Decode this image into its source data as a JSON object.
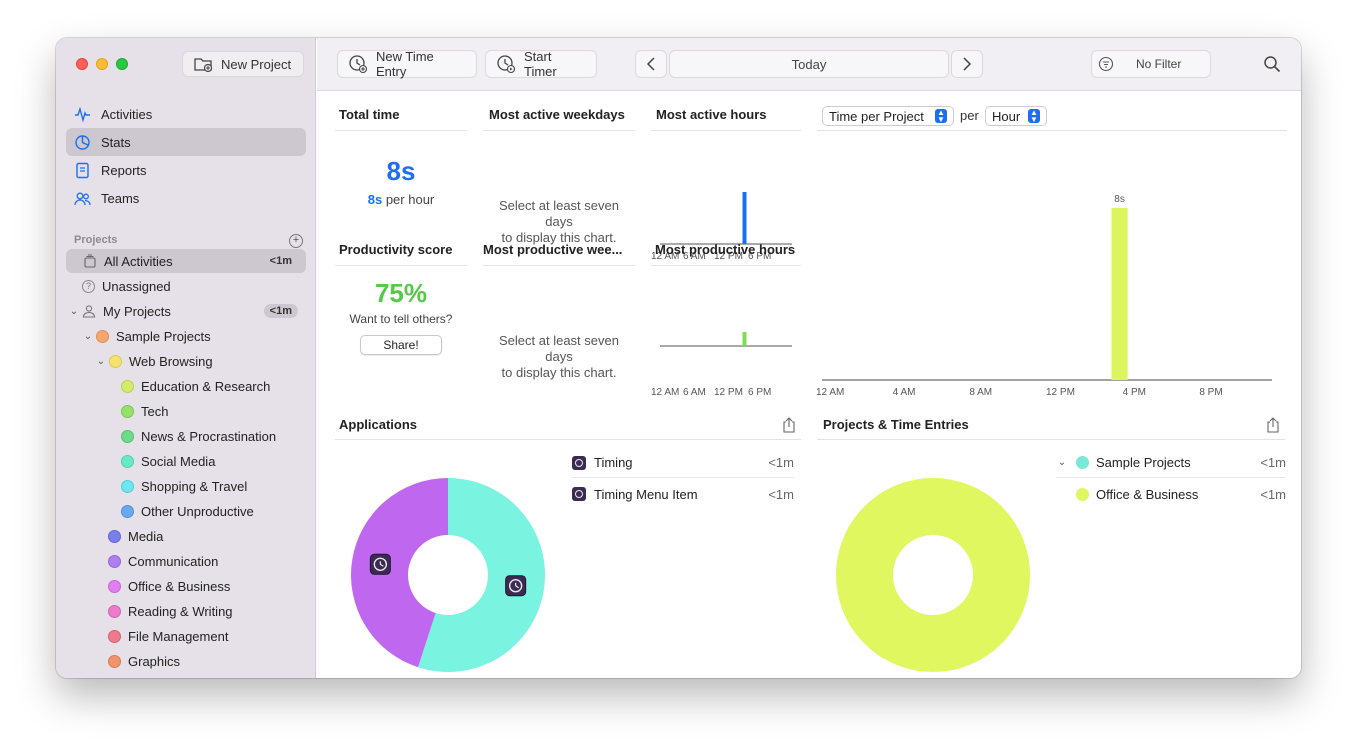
{
  "toolbar": {
    "new_project": "New Project",
    "new_time_entry": "New Time Entry",
    "start_timer": "Start Timer",
    "date_label": "Today",
    "filter_label": "No Filter"
  },
  "sidebar": {
    "nav": [
      {
        "label": "Activities",
        "icon": "activity-icon"
      },
      {
        "label": "Stats",
        "icon": "stats-icon",
        "selected": true
      },
      {
        "label": "Reports",
        "icon": "reports-icon"
      },
      {
        "label": "Teams",
        "icon": "teams-icon"
      }
    ],
    "projects_header": "Projects",
    "all_activities": {
      "label": "All Activities",
      "duration": "<1m"
    },
    "unassigned": {
      "label": "Unassigned"
    },
    "my_projects": {
      "label": "My Projects",
      "duration": "<1m"
    },
    "projects": [
      {
        "label": "Sample Projects",
        "color": "#f5a66e"
      },
      {
        "label": "Web Browsing",
        "color": "#f6e36c"
      },
      {
        "label": "Education & Research",
        "color": "#d4ec6a"
      },
      {
        "label": "Tech",
        "color": "#97e06a"
      },
      {
        "label": "News & Procrastination",
        "color": "#6cdc8a"
      },
      {
        "label": "Social Media",
        "color": "#6be8c8"
      },
      {
        "label": "Shopping & Travel",
        "color": "#6de6ef"
      },
      {
        "label": "Other Unproductive",
        "color": "#6aa9f0"
      },
      {
        "label": "Media",
        "color": "#7b7fee"
      },
      {
        "label": "Communication",
        "color": "#ae7fef"
      },
      {
        "label": "Office & Business",
        "color": "#e27ff0"
      },
      {
        "label": "Reading & Writing",
        "color": "#ea7ccb"
      },
      {
        "label": "File Management",
        "color": "#ee7a8c"
      },
      {
        "label": "Graphics",
        "color": "#f1946c"
      }
    ]
  },
  "stats": {
    "total_time": {
      "title": "Total time",
      "value": "8s",
      "per_hour_value": "8s",
      "per_hour_label": "per hour"
    },
    "most_active_weekdays": {
      "title": "Most active weekdays",
      "placeholder_l1": "Select at least seven",
      "placeholder_l2": "days",
      "placeholder_l3": "to display this chart."
    },
    "most_active_hours": {
      "title": "Most active hours",
      "ticks": [
        "12 AM",
        "6 AM",
        "12 PM",
        "6 PM"
      ]
    },
    "productivity": {
      "title": "Productivity score",
      "value": "75%",
      "question": "Want to tell others?",
      "share": "Share!"
    },
    "most_productive_weekdays": {
      "title": "Most productive wee...",
      "placeholder_l1": "Select at least seven",
      "placeholder_l2": "days",
      "placeholder_l3": "to display this chart."
    },
    "most_productive_hours": {
      "title": "Most productive hours",
      "ticks": [
        "12 AM",
        "6 AM",
        "12 PM",
        "6 PM"
      ]
    },
    "time_per": {
      "select1": "Time per Project",
      "per": "per",
      "select2": "Hour"
    }
  },
  "chart_data": [
    {
      "type": "bar",
      "title": "Time per Project per Hour",
      "x_ticks": [
        "12 AM",
        "4 AM",
        "8 AM",
        "12 PM",
        "4 PM",
        "8 PM"
      ],
      "bars": [
        {
          "hour": 15,
          "value_seconds": 8,
          "label": "8s",
          "color": "#ddf55d"
        }
      ],
      "ylim": [
        0,
        8
      ]
    },
    {
      "type": "bar",
      "title": "Most active hours",
      "bars": [
        {
          "hour": 15,
          "value": 1,
          "color": "#1b6ff0"
        }
      ]
    },
    {
      "type": "bar",
      "title": "Most productive hours",
      "bars": [
        {
          "hour": 15,
          "value": 1,
          "color": "#7ddc58"
        }
      ]
    },
    {
      "type": "pie",
      "title": "Applications",
      "slices": [
        {
          "name": "Timing",
          "value": 55,
          "color": "#7af4e0"
        },
        {
          "name": "Timing Menu Item",
          "value": 45,
          "color": "#c067f0"
        }
      ]
    },
    {
      "type": "pie",
      "title": "Projects & Time Entries",
      "slices": [
        {
          "name": "Office & Business",
          "value": 100,
          "color": "#e0f760"
        }
      ]
    }
  ],
  "applications": {
    "title": "Applications",
    "rows": [
      {
        "name": "Timing",
        "duration": "<1m"
      },
      {
        "name": "Timing Menu Item",
        "duration": "<1m"
      }
    ]
  },
  "projects_entries": {
    "title": "Projects & Time Entries",
    "rows": [
      {
        "name": "Sample Projects",
        "duration": "<1m",
        "color": "#7ae8d8"
      },
      {
        "name": "Office & Business",
        "duration": "<1m",
        "color": "#e0f760"
      }
    ]
  }
}
